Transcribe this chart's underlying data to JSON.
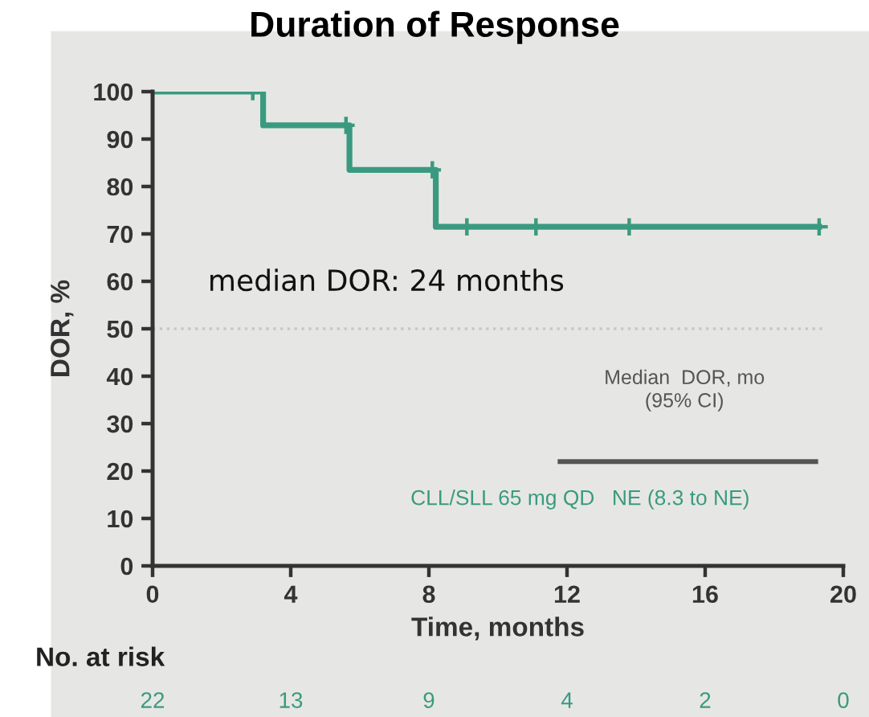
{
  "chart_data": {
    "type": "step",
    "title": "Duration of Response",
    "xlabel": "Time, months",
    "ylabel": "DOR, %",
    "xlim": [
      0,
      20
    ],
    "xticks": [
      0,
      4,
      8,
      12,
      16,
      20
    ],
    "ylim": [
      0,
      100
    ],
    "yticks": [
      0,
      10,
      20,
      30,
      40,
      50,
      60,
      70,
      80,
      90,
      100
    ],
    "grid": false,
    "legend": "bottom right",
    "series": [
      {
        "name": "CLL/SLL 65 mg QD",
        "color": "#3a9a80",
        "x": [
          0,
          3.2,
          5.7,
          8.2,
          19.3
        ],
        "values": [
          100,
          92.9,
          83.5,
          71.5,
          71.5
        ]
      },
      {
        "type": "scatter",
        "marker": "cross",
        "color": "#3a9a80",
        "x": [
          2.9,
          5.6,
          8.1,
          9.1,
          11.1,
          13.8,
          19.3
        ],
        "values": [
          100,
          92.9,
          83.5,
          71.5,
          71.5,
          71.5,
          71.5
        ]
      }
    ],
    "ref_lines": [
      {
        "axis": "y",
        "value": 50,
        "color": "#c8c8c4",
        "line_style": "dotted"
      }
    ],
    "annotations": [
      "median DOR: 24 months",
      "Median  DOR, mo\n(95% CI)",
      "NE (8.3 to NE)",
      "No. at risk",
      "22",
      "13",
      "9",
      "4",
      "2",
      "0"
    ]
  }
}
